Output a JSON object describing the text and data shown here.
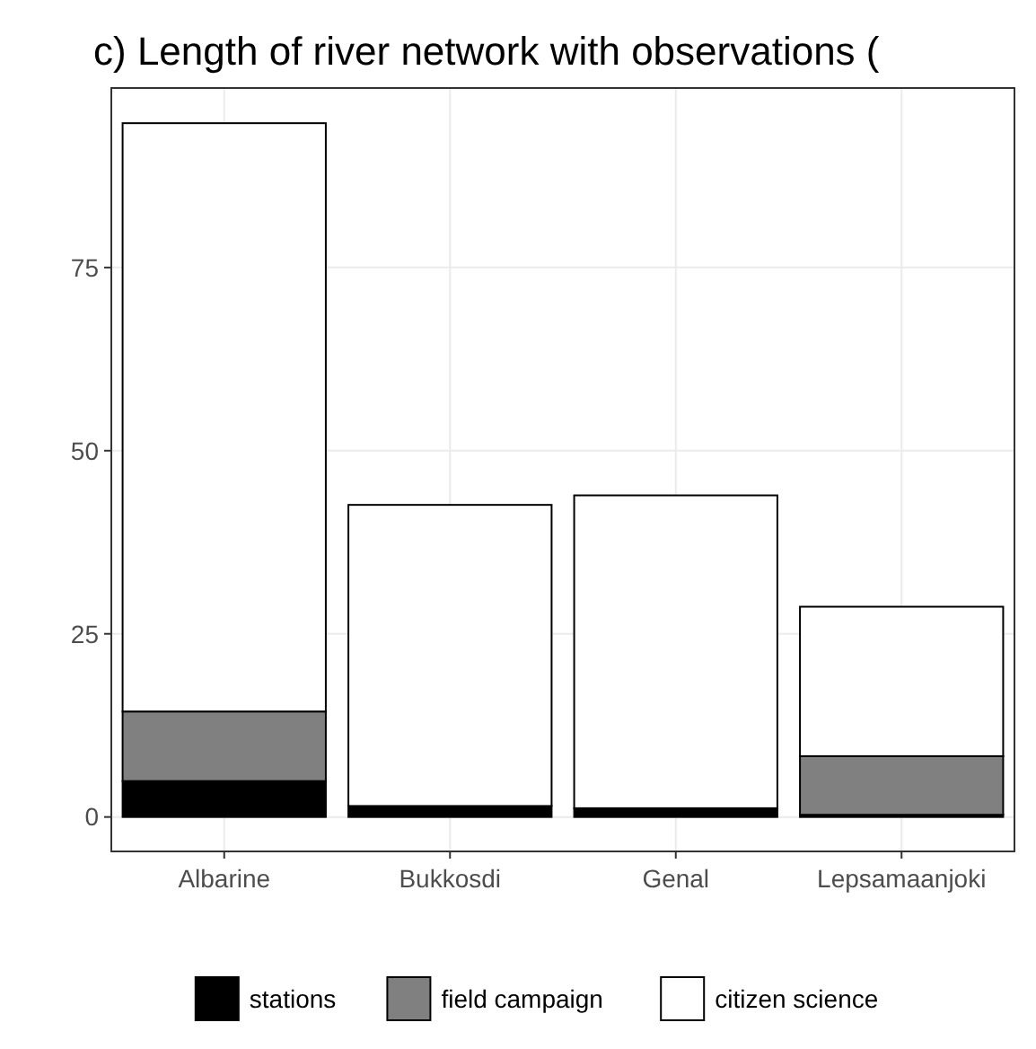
{
  "chart_data": {
    "type": "bar",
    "title": "c) Length of river network with observations (",
    "categories": [
      "Albarine",
      "Bukkosdi",
      "Genal",
      "Lepsamaanjoki"
    ],
    "stacked": true,
    "series": [
      {
        "name": "stations",
        "color": "#000000",
        "values": [
          4.9,
          1.5,
          1.2,
          0.3
        ]
      },
      {
        "name": "field campaign",
        "color": "#808080",
        "values": [
          9.5,
          0,
          0,
          8.0
        ]
      },
      {
        "name": "citizen science",
        "color": "#ffffff",
        "values": [
          80.3,
          41.1,
          42.7,
          20.4
        ]
      }
    ],
    "ylim": [
      -4.7,
      99.5
    ],
    "yticks": [
      0,
      25,
      50,
      75
    ],
    "grid": true,
    "legend": "bottom"
  }
}
